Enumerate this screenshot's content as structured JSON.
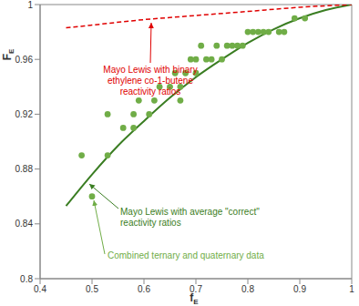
{
  "chart_data": {
    "type": "scatter",
    "x_label": "fE",
    "y_label": "FE",
    "xlim": [
      0.4,
      1
    ],
    "xticks": [
      0.4,
      0.5,
      0.6,
      0.7,
      0.8,
      0.9,
      1
    ],
    "ylim": [
      0.8,
      1
    ],
    "yticks": [
      0.8,
      0.84,
      0.88,
      0.92,
      0.96,
      1
    ],
    "grid": false,
    "series": [
      {
        "annotation": [
          "Combined ternary and quaternary data"
        ],
        "type": "scatter",
        "color": "#70ad47",
        "marker": "circle",
        "x": [
          0.48,
          0.5,
          0.53,
          0.53,
          0.56,
          0.58,
          0.58,
          0.59,
          0.61,
          0.62,
          0.63,
          0.65,
          0.66,
          0.67,
          0.67,
          0.68,
          0.69,
          0.7,
          0.7,
          0.71,
          0.72,
          0.73,
          0.74,
          0.75,
          0.76,
          0.77,
          0.78,
          0.79,
          0.8,
          0.81,
          0.82,
          0.83,
          0.84,
          0.86,
          0.87,
          0.89,
          0.91
        ],
        "values": [
          0.89,
          0.86,
          0.92,
          0.89,
          0.91,
          0.92,
          0.91,
          0.93,
          0.92,
          0.93,
          0.94,
          0.94,
          0.95,
          0.94,
          0.93,
          0.95,
          0.96,
          0.96,
          0.95,
          0.97,
          0.96,
          0.96,
          0.97,
          0.96,
          0.97,
          0.97,
          0.97,
          0.97,
          0.98,
          0.98,
          0.98,
          0.98,
          0.98,
          0.98,
          0.98,
          0.99,
          0.99
        ]
      },
      {
        "annotation": [
          "Mayo Lewis with average \"correct\"",
          "reactivity ratios"
        ],
        "type": "line",
        "color": "#3a7d22",
        "line_style": "solid",
        "x": [
          0.45,
          0.5,
          0.55,
          0.6,
          0.65,
          0.7,
          0.75,
          0.8,
          0.85,
          0.9,
          0.95,
          1
        ],
        "values": [
          0.853,
          0.876,
          0.897,
          0.915,
          0.932,
          0.947,
          0.96,
          0.972,
          0.982,
          0.99,
          0.996,
          1
        ]
      },
      {
        "annotation": [
          "Mayo Lewis with binary",
          "ethylene co-1-butene",
          "reactivity ratios"
        ],
        "type": "line",
        "color": "#e00000",
        "line_style": "dashed",
        "x": [
          0.45,
          0.5,
          0.6,
          0.7,
          0.8,
          0.9,
          1
        ],
        "values": [
          0.983,
          0.985,
          0.989,
          0.992,
          0.995,
          0.998,
          1
        ]
      }
    ]
  }
}
